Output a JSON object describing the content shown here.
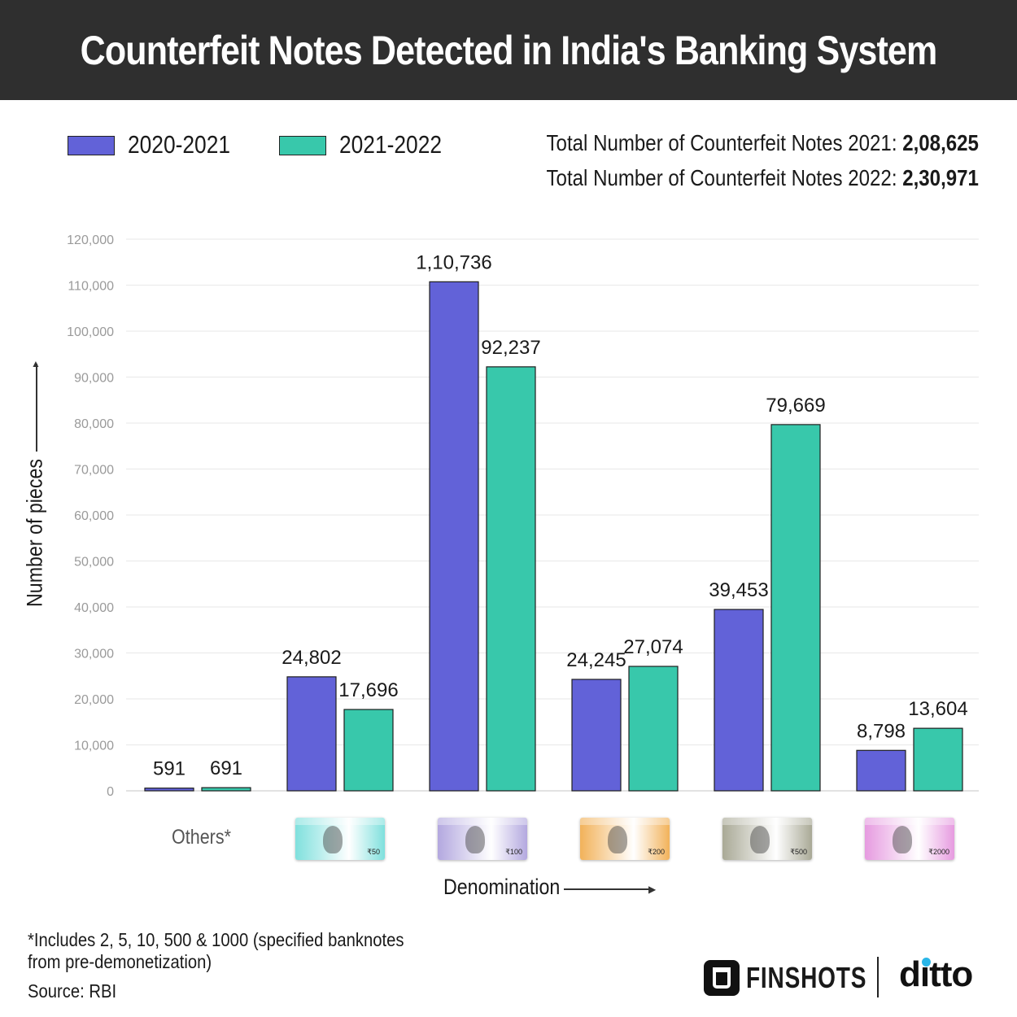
{
  "title": "Counterfeit Notes Detected in India's Banking System",
  "legend": [
    {
      "label": "2020-2021",
      "color": "#6262d8"
    },
    {
      "label": "2021-2022",
      "color": "#38c8ab"
    }
  ],
  "totals": [
    {
      "label": "Total Number of Counterfeit Notes 2021:",
      "value": "2,08,625"
    },
    {
      "label": "Total Number of Counterfeit Notes 2022:",
      "value": "2,30,971"
    }
  ],
  "chart_data": {
    "type": "bar",
    "categories": [
      "Others*",
      "₹50",
      "₹100",
      "₹200",
      "₹500",
      "₹2000"
    ],
    "series": [
      {
        "name": "2020-2021",
        "values": [
          591,
          24802,
          110736,
          24245,
          39453,
          8798
        ]
      },
      {
        "name": "2021-2022",
        "values": [
          691,
          17696,
          92237,
          27074,
          79669,
          13604
        ]
      }
    ],
    "value_labels": [
      [
        "591",
        "24,802",
        "1,10,736",
        "24,245",
        "39,453",
        "8,798"
      ],
      [
        "691",
        "17,696",
        "92,237",
        "27,074",
        "79,669",
        "13,604"
      ]
    ],
    "title": "Counterfeit Notes Detected in India's Banking System",
    "xlabel": "Denomination",
    "ylabel": "Number of pieces",
    "ylim": [
      0,
      120000
    ],
    "yticks": [
      "0",
      "10,000",
      "20,000",
      "30,000",
      "40,000",
      "50,000",
      "60,000",
      "70,000",
      "80,000",
      "90,000",
      "100,000",
      "110,000",
      "120,000"
    ],
    "grid": true,
    "legend_position": "top-left"
  },
  "notes": [
    {
      "label": "₹50",
      "color": "#7fe0dd"
    },
    {
      "label": "₹100",
      "color": "#b3a8df"
    },
    {
      "label": "₹200",
      "color": "#f2b25a"
    },
    {
      "label": "₹500",
      "color": "#a9a996"
    },
    {
      "label": "₹2000",
      "color": "#e69be0"
    }
  ],
  "others_label": "Others*",
  "footnote": "*Includes 2, 5, 10, 500 & 1000 (specified banknotes from pre-demonetization)",
  "source": "Source: RBI",
  "brands": {
    "finshots": "FINSHOTS",
    "ditto": "ditto"
  }
}
